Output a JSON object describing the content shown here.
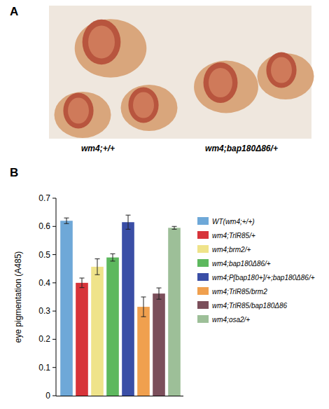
{
  "panel_labels": [
    "A",
    "B"
  ],
  "photo_labels": [
    "wm4;+/+",
    "wm4;bap180Δ86/+"
  ],
  "chart_data": {
    "type": "bar",
    "y_label": "eye pigmentation (A485)",
    "categories": [
      "WT(wm4;+/+)",
      "wm4;TrlR85/+",
      "wm4;brm2/+",
      "wm4;bap180Δ86/+",
      "wm4;P[bap180+]/+;bap180Δ86/+",
      "wm4;TrlR85/brm2",
      "wm4;TrlR85/bap180Δ86",
      "wm4;osa2/+"
    ],
    "values": [
      0.62,
      0.4,
      0.457,
      0.49,
      0.615,
      0.315,
      0.362,
      0.595
    ],
    "errors": [
      0.01,
      0.017,
      0.028,
      0.013,
      0.025,
      0.035,
      0.02,
      0.005
    ],
    "colors": [
      "#6ea8d8",
      "#d7343a",
      "#efe38a",
      "#5db85e",
      "#3a4ea6",
      "#f0a04e",
      "#7b4f5b",
      "#9dbf98"
    ],
    "ylim": [
      0,
      0.7
    ],
    "yticks": [
      0,
      0.1,
      0.2,
      0.3,
      0.4,
      0.5,
      0.6,
      0.7
    ],
    "legend": "right",
    "tick_labels": "y"
  }
}
